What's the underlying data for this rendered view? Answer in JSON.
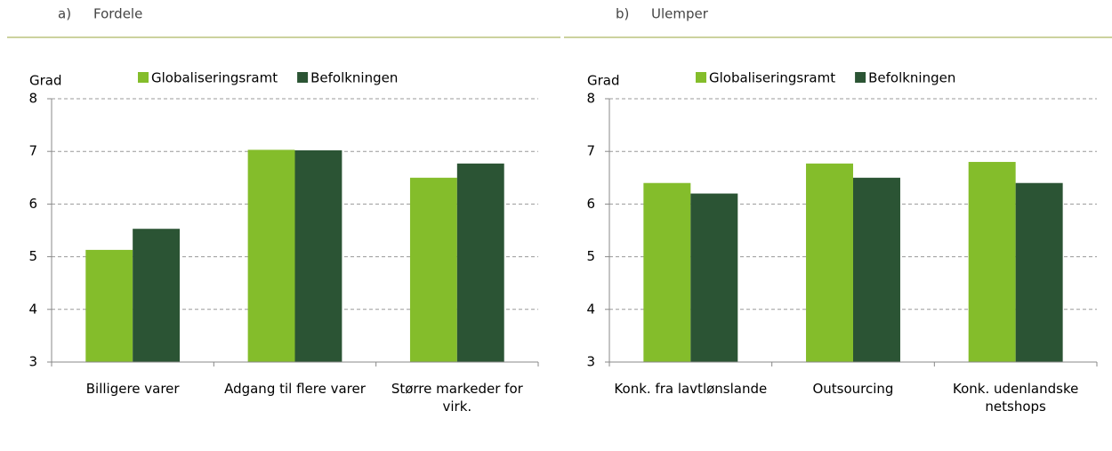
{
  "chart_data": [
    {
      "type": "bar",
      "panel": "a)",
      "title": "Fordele",
      "ylabel": "Grad",
      "categories": [
        "Billigere varer",
        "Adgang til flere varer",
        "Større markeder for virk."
      ],
      "series": [
        {
          "name": "Globaliseringsramt",
          "color": "#84bd2b",
          "values": [
            5.13,
            7.03,
            6.5
          ]
        },
        {
          "name": "Befolkningen",
          "color": "#2b5434",
          "values": [
            5.53,
            7.02,
            6.77
          ]
        }
      ],
      "ylim": [
        3,
        8
      ],
      "yticks": [
        3,
        4,
        5,
        6,
        7,
        8
      ],
      "grid": true
    },
    {
      "type": "bar",
      "panel": "b)",
      "title": "Ulemper",
      "ylabel": "Grad",
      "categories": [
        "Konk. fra lavtlønslande",
        "Outsourcing",
        "Konk. udenlandske netshops"
      ],
      "series": [
        {
          "name": "Globaliseringsramt",
          "color": "#84bd2b",
          "values": [
            6.4,
            6.77,
            6.8
          ]
        },
        {
          "name": "Befolkningen",
          "color": "#2b5434",
          "values": [
            6.2,
            6.5,
            6.4
          ]
        }
      ],
      "ylim": [
        3,
        8
      ],
      "yticks": [
        3,
        4,
        5,
        6,
        7,
        8
      ],
      "grid": true
    }
  ]
}
